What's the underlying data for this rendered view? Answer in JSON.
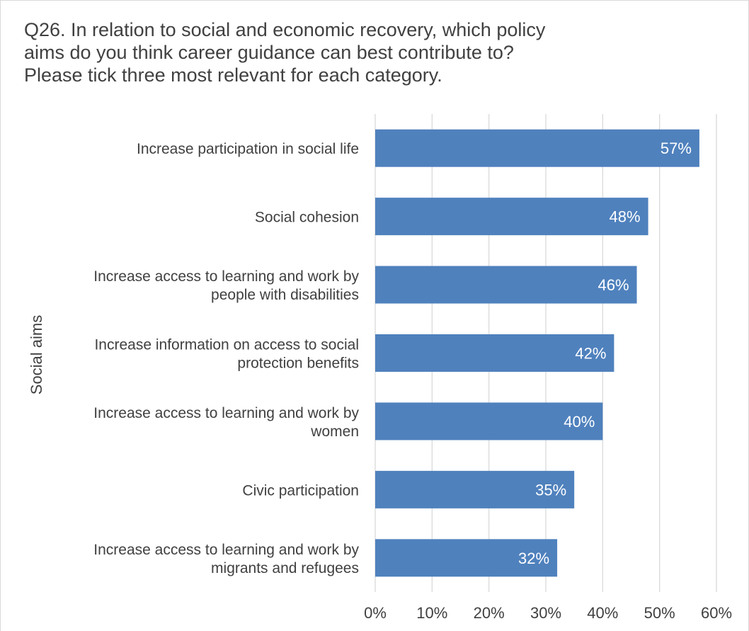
{
  "title_lines": [
    "Q26. In relation to social and economic recovery, which policy",
    "aims do you think career guidance can best contribute to?",
    "Please tick three most relevant for each category."
  ],
  "chart_data": {
    "type": "bar",
    "orientation": "horizontal",
    "title": "Q26. In relation to social and economic recovery, which policy aims do you think career guidance can best contribute to? Please tick three most relevant for each category.",
    "ylabel": "Social aims",
    "xlabel": "",
    "categories": [
      [
        "Increase participation in social life"
      ],
      [
        "Social cohesion"
      ],
      [
        "Increase access to learning and work by",
        "people with disabilities"
      ],
      [
        "Increase information on access to social",
        "protection benefits"
      ],
      [
        "Increase access to learning and work by",
        "women"
      ],
      [
        "Civic participation"
      ],
      [
        "Increase access to learning and work by",
        "migrants and refugees"
      ]
    ],
    "values": [
      57,
      48,
      46,
      42,
      40,
      35,
      32
    ],
    "data_labels": [
      "57%",
      "48%",
      "46%",
      "42%",
      "40%",
      "35%",
      "32%"
    ],
    "xlim": [
      0,
      60
    ],
    "x_ticks": [
      0,
      10,
      20,
      30,
      40,
      50,
      60
    ],
    "x_tick_labels": [
      "0%",
      "10%",
      "20%",
      "30%",
      "40%",
      "50%",
      "60%"
    ],
    "grid": true,
    "bar_color": "#4F81BD",
    "legend": "none"
  }
}
